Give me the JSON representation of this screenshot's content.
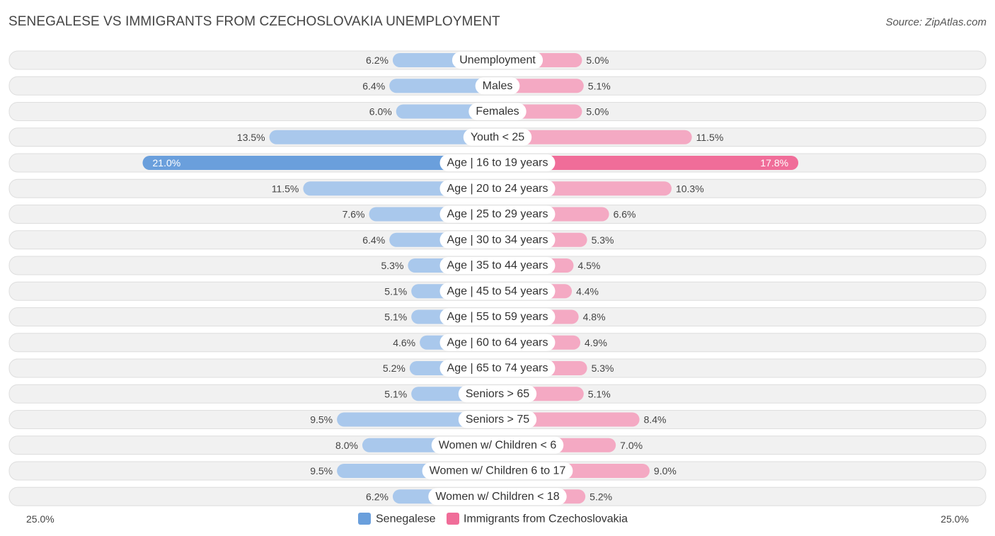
{
  "header": {
    "title": "SENEGALESE VS IMMIGRANTS FROM CZECHOSLOVAKIA UNEMPLOYMENT",
    "source": "Source: ZipAtlas.com"
  },
  "colors": {
    "left_light": "#a9c8ec",
    "left_strong": "#6a9fdc",
    "right_light": "#f4a9c3",
    "right_strong": "#f06d99"
  },
  "chart_data": {
    "type": "bar",
    "orientation": "horizontal-diverging",
    "title": "SENEGALESE VS IMMIGRANTS FROM CZECHOSLOVAKIA UNEMPLOYMENT",
    "categories": [
      "Unemployment",
      "Males",
      "Females",
      "Youth < 25",
      "Age | 16 to 19 years",
      "Age | 20 to 24 years",
      "Age | 25 to 29 years",
      "Age | 30 to 34 years",
      "Age | 35 to 44 years",
      "Age | 45 to 54 years",
      "Age | 55 to 59 years",
      "Age | 60 to 64 years",
      "Age | 65 to 74 years",
      "Seniors > 65",
      "Seniors > 75",
      "Women w/ Children < 6",
      "Women w/ Children 6 to 17",
      "Women w/ Children < 18"
    ],
    "series": [
      {
        "name": "Senegalese",
        "side": "left",
        "values": [
          6.2,
          6.4,
          6.0,
          13.5,
          21.0,
          11.5,
          7.6,
          6.4,
          5.3,
          5.1,
          5.1,
          4.6,
          5.2,
          5.1,
          9.5,
          8.0,
          9.5,
          6.2
        ],
        "labels": [
          "6.2%",
          "6.4%",
          "6.0%",
          "13.5%",
          "21.0%",
          "11.5%",
          "7.6%",
          "6.4%",
          "5.3%",
          "5.1%",
          "5.1%",
          "4.6%",
          "5.2%",
          "5.1%",
          "9.5%",
          "8.0%",
          "9.5%",
          "6.2%"
        ]
      },
      {
        "name": "Immigrants from Czechoslovakia",
        "side": "right",
        "values": [
          5.0,
          5.1,
          5.0,
          11.5,
          17.8,
          10.3,
          6.6,
          5.3,
          4.5,
          4.4,
          4.8,
          4.9,
          5.3,
          5.1,
          8.4,
          7.0,
          9.0,
          5.2
        ],
        "labels": [
          "5.0%",
          "5.1%",
          "5.0%",
          "11.5%",
          "17.8%",
          "10.3%",
          "6.6%",
          "5.3%",
          "4.5%",
          "4.4%",
          "4.8%",
          "4.9%",
          "5.3%",
          "5.1%",
          "8.4%",
          "7.0%",
          "9.0%",
          "5.2%"
        ]
      }
    ],
    "xlim": [
      0,
      25
    ],
    "axis_labels": {
      "left": "25.0%",
      "right": "25.0%"
    },
    "legend": {
      "position": "bottom-center",
      "items": [
        "Senegalese",
        "Immigrants from Czechoslovakia"
      ]
    }
  }
}
